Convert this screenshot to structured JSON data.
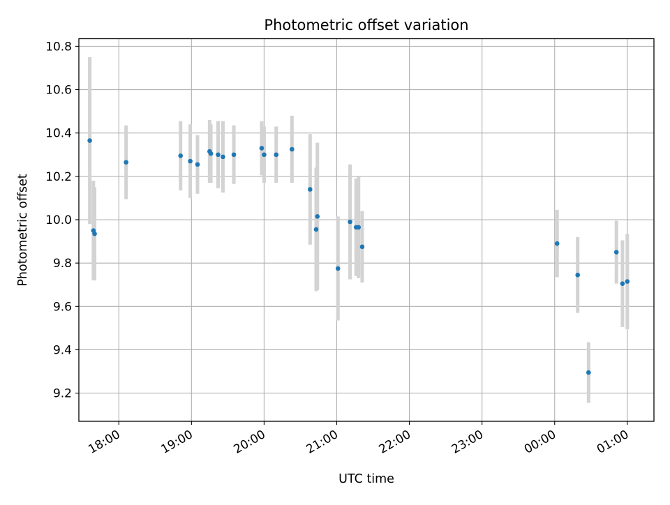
{
  "chart_data": {
    "type": "scatter",
    "title": "Photometric offset variation",
    "xlabel": "UTC time",
    "ylabel": "Photometric offset",
    "x_ticks": [
      "18:00",
      "19:00",
      "20:00",
      "21:00",
      "22:00",
      "23:00",
      "00:00",
      "01:00"
    ],
    "y_ticks": [
      "9.2",
      "9.4",
      "9.6",
      "9.8",
      "10.0",
      "10.2",
      "10.4",
      "10.6",
      "10.8"
    ],
    "xlim": [
      "17:27",
      "01:22"
    ],
    "ylim": [
      9.07,
      10.835
    ],
    "grid": true,
    "marker_color": "#1f77b4",
    "errorbar_color": "#d3d3d3",
    "series": [
      {
        "points": [
          {
            "t": "17:36",
            "y": 10.365,
            "err": 0.385
          },
          {
            "t": "17:39",
            "y": 9.95,
            "err": 0.23
          },
          {
            "t": "17:40",
            "y": 9.935,
            "err": 0.215
          },
          {
            "t": "18:06",
            "y": 10.265,
            "err": 0.17
          },
          {
            "t": "18:51",
            "y": 10.295,
            "err": 0.16
          },
          {
            "t": "18:59",
            "y": 10.27,
            "err": 0.17
          },
          {
            "t": "19:05",
            "y": 10.255,
            "err": 0.135
          },
          {
            "t": "19:15",
            "y": 10.315,
            "err": 0.145
          },
          {
            "t": "19:16",
            "y": 10.305,
            "err": 0.135
          },
          {
            "t": "19:22",
            "y": 10.3,
            "err": 0.155
          },
          {
            "t": "19:26",
            "y": 10.29,
            "err": 0.165
          },
          {
            "t": "19:35",
            "y": 10.3,
            "err": 0.135
          },
          {
            "t": "19:58",
            "y": 10.33,
            "err": 0.125
          },
          {
            "t": "20:00",
            "y": 10.3,
            "err": 0.13
          },
          {
            "t": "20:10",
            "y": 10.3,
            "err": 0.13
          },
          {
            "t": "20:23",
            "y": 10.325,
            "err": 0.155
          },
          {
            "t": "20:38",
            "y": 10.14,
            "err": 0.255
          },
          {
            "t": "20:43",
            "y": 9.955,
            "err": 0.285
          },
          {
            "t": "20:44",
            "y": 10.015,
            "err": 0.34
          },
          {
            "t": "21:01",
            "y": 9.775,
            "err": 0.24
          },
          {
            "t": "21:11",
            "y": 9.99,
            "err": 0.265
          },
          {
            "t": "21:16",
            "y": 9.965,
            "err": 0.225
          },
          {
            "t": "21:18",
            "y": 9.965,
            "err": 0.235
          },
          {
            "t": "21:21",
            "y": 9.875,
            "err": 0.165
          },
          {
            "t": "00:02",
            "y": 9.89,
            "err": 0.155
          },
          {
            "t": "00:19",
            "y": 9.745,
            "err": 0.175
          },
          {
            "t": "00:28",
            "y": 9.295,
            "err": 0.14
          },
          {
            "t": "00:51",
            "y": 9.85,
            "err": 0.145
          },
          {
            "t": "00:56",
            "y": 9.705,
            "err": 0.2
          },
          {
            "t": "01:00",
            "y": 9.715,
            "err": 0.22
          }
        ]
      }
    ]
  }
}
